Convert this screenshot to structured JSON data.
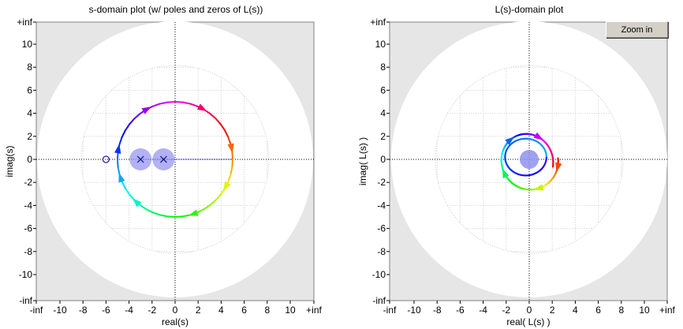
{
  "window": {
    "zoom_button_label": "Zoom in"
  },
  "plots": {
    "s_domain": {
      "title": "s-domain plot (w/ poles and zeros of L(s))",
      "xlabel": "real(s)",
      "ylabel": "imag(s)"
    },
    "l_domain": {
      "title": "L(s)-domain plot",
      "xlabel": "real( L(s) )",
      "ylabel": "imag( L(s) )"
    }
  },
  "colors": {
    "outer_background": "#e6e6e6",
    "disk": "#ffffff",
    "grid": "#c8c8c8",
    "pole_zero_marker": "#2020a0",
    "pole_shading": "#9090ee",
    "dashed_axis": "#2020c0"
  },
  "chart_data": [
    {
      "type": "scatter",
      "name": "s-domain plot",
      "title": "s-domain plot (w/ poles and zeros of L(s))",
      "xlabel": "real(s)",
      "ylabel": "imag(s)",
      "xtick_labels": [
        "-inf",
        "-10",
        "-8",
        "-6",
        "-4",
        "-2",
        "0",
        "2",
        "4",
        "6",
        "8",
        "10",
        "+inf"
      ],
      "ytick_labels": [
        "+inf",
        "10",
        "8",
        "6",
        "4",
        "2",
        "0",
        "-2",
        "-4",
        "-6",
        "-8",
        "-10",
        "-inf"
      ],
      "xlim": [
        -12,
        12
      ],
      "ylim": [
        -12,
        12
      ],
      "grid": true,
      "poles": [
        [
          -3,
          0
        ],
        [
          -1,
          0
        ]
      ],
      "zeros": [
        [
          -6,
          0
        ]
      ],
      "contour": {
        "shape": "circle",
        "center": [
          0,
          0
        ],
        "radius": 5
      }
    },
    {
      "type": "line",
      "name": "L(s)-domain plot",
      "title": "L(s)-domain plot",
      "xlabel": "real( L(s) )",
      "ylabel": "imag( L(s) )",
      "xtick_labels": [
        "-inf",
        "-10",
        "-8",
        "-6",
        "-4",
        "-2",
        "0",
        "2",
        "4",
        "6",
        "8",
        "10",
        "+inf"
      ],
      "ytick_labels": [
        "+inf",
        "10",
        "8",
        "6",
        "4",
        "2",
        "0",
        "-2",
        "-4",
        "-6",
        "-8",
        "-10",
        "-inf"
      ],
      "xlim": [
        -12,
        12
      ],
      "ylim": [
        -12,
        12
      ],
      "grid": true,
      "critical_point_marker": [
        0,
        0
      ],
      "curve": {
        "shape": "spiral loop",
        "x_range": [
          -2.7,
          2.5
        ],
        "y_range": [
          -2.5,
          2.6
        ]
      }
    }
  ]
}
